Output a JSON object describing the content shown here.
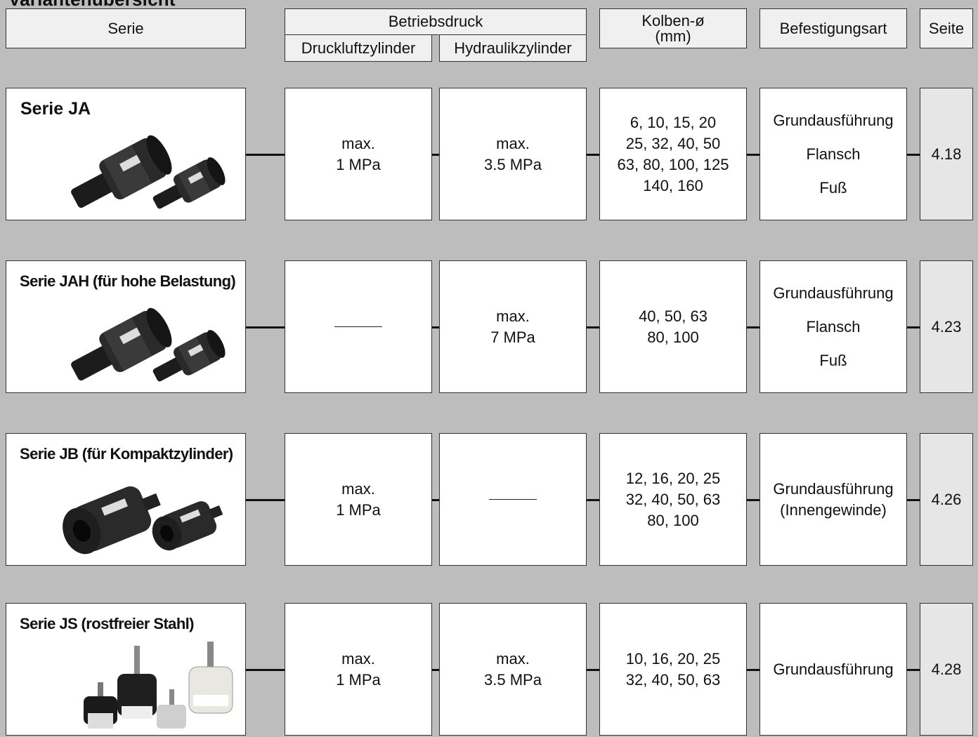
{
  "title": "Variantenübersicht",
  "header": {
    "serie": "Serie",
    "betriebsdruck": "Betriebsdruck",
    "druckluft": "Druckluftzylinder",
    "hydraulik": "Hydraulikzylinder",
    "kolben_line1": "Kolben-ø",
    "kolben_line2": "(mm)",
    "befestigung": "Befestigungsart",
    "seite": "Seite"
  },
  "rows": [
    {
      "name": "Serie JA",
      "druckluft": [
        "max.",
        "1 MPa"
      ],
      "hydraulik": [
        "max.",
        "3.5 MPa"
      ],
      "kolben": [
        "6, 10, 15, 20",
        "25, 32, 40, 50",
        "63, 80, 100, 125",
        "140, 160"
      ],
      "befestigung": [
        "Grundausführung",
        "Flansch",
        "Fuß"
      ],
      "seite": "4.18",
      "photo_icon": "cylinder-pair-photo"
    },
    {
      "name": "Serie JAH (für hohe Belastung)",
      "druckluft": null,
      "hydraulik": [
        "max.",
        "7 MPa"
      ],
      "kolben": [
        "40, 50, 63",
        "80, 100"
      ],
      "befestigung": [
        "Grundausführung",
        "Flansch",
        "Fuß"
      ],
      "seite": "4.23",
      "photo_icon": "cylinder-pair-photo"
    },
    {
      "name": "Serie JB (für Kompaktzylinder)",
      "druckluft": [
        "max.",
        "1 MPa"
      ],
      "hydraulik": null,
      "kolben": [
        "12, 16, 20, 25",
        "32, 40, 50, 63",
        "80, 100"
      ],
      "befestigung": [
        "Grundausführung",
        "(Innengewinde)"
      ],
      "seite": "4.26",
      "photo_icon": "compact-cylinder-photo"
    },
    {
      "name": "Serie JS (rostfreier Stahl)",
      "druckluft": [
        "max.",
        "1 MPa"
      ],
      "hydraulik": [
        "max.",
        "3.5 MPa"
      ],
      "kolben": [
        "10, 16, 20, 25",
        "32, 40, 50, 63"
      ],
      "befestigung": [
        "Grundausführung"
      ],
      "seite": "4.28",
      "photo_icon": "stainless-cylinder-photo"
    }
  ]
}
